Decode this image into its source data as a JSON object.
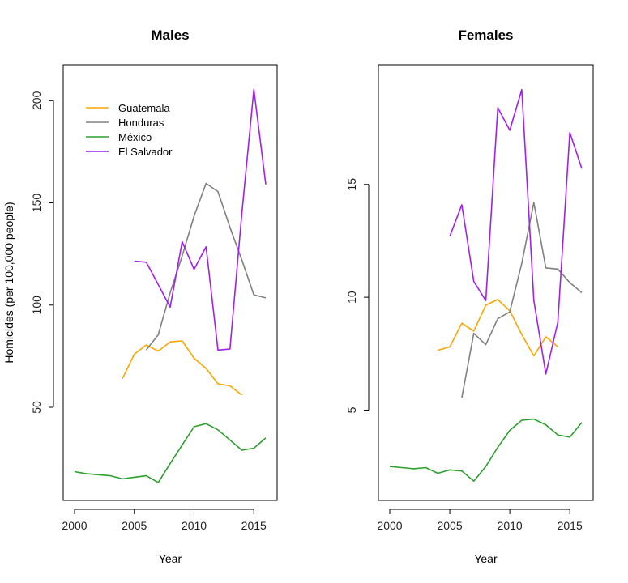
{
  "chart_data": [
    {
      "type": "line",
      "title": "Males",
      "xlabel": "Year",
      "ylabel": "Homicides (per 100,000 people)",
      "xlim": [
        2000,
        2016
      ],
      "ylim": [
        10,
        212
      ],
      "xticks": [
        2000,
        2005,
        2010,
        2015
      ],
      "yticks": [
        50,
        100,
        150,
        200
      ],
      "grid": false,
      "legend_position": "top-left",
      "series": [
        {
          "name": "Guatemala",
          "color": "#FFA500",
          "x": [
            2004,
            2005,
            2006,
            2007,
            2008,
            2009,
            2010,
            2011,
            2012,
            2013,
            2014
          ],
          "y": [
            64,
            76,
            80.5,
            77.5,
            82,
            82.5,
            74,
            69,
            61.5,
            60.5,
            56
          ]
        },
        {
          "name": "Honduras",
          "color": "#808080",
          "x": [
            2006,
            2007,
            2008,
            2009,
            2010,
            2011,
            2012,
            2013,
            2014,
            2015,
            2016
          ],
          "y": [
            78,
            85.5,
            106,
            124,
            143.5,
            159.5,
            155.5,
            138,
            122,
            105,
            103.5
          ]
        },
        {
          "name": "México",
          "color": "#2CA02C",
          "x": [
            2000,
            2001,
            2002,
            2003,
            2004,
            2005,
            2006,
            2007,
            2008,
            2009,
            2010,
            2011,
            2012,
            2013,
            2014,
            2015,
            2016
          ],
          "y": [
            18.5,
            17.5,
            17,
            16.5,
            15,
            15.8,
            16.5,
            13.2,
            22.5,
            31.5,
            40.5,
            42,
            39,
            34,
            29,
            30,
            35
          ]
        },
        {
          "name": "El Salvador",
          "color": "#A020F0",
          "x": [
            2005,
            2006,
            2007,
            2008,
            2009,
            2010,
            2011,
            2012,
            2013,
            2014,
            2015,
            2016
          ],
          "y": [
            121.5,
            121,
            110,
            99,
            131,
            117.5,
            128.5,
            78,
            78.5,
            145,
            205.5,
            159
          ]
        }
      ]
    },
    {
      "type": "line",
      "title": "Females",
      "xlabel": "Year",
      "ylabel": "",
      "xlim": [
        2000,
        2016
      ],
      "ylim": [
        1.5,
        19.8
      ],
      "xticks": [
        2000,
        2005,
        2010,
        2015
      ],
      "yticks": [
        5,
        10,
        15
      ],
      "grid": false,
      "legend_position": "none",
      "series": [
        {
          "name": "Guatemala",
          "color": "#FFA500",
          "x": [
            2004,
            2005,
            2006,
            2007,
            2008,
            2009,
            2010,
            2011,
            2012,
            2013,
            2014
          ],
          "y": [
            7.65,
            7.8,
            8.85,
            8.5,
            9.65,
            9.9,
            9.4,
            8.35,
            7.4,
            8.25,
            7.8
          ]
        },
        {
          "name": "Honduras",
          "color": "#808080",
          "x": [
            2006,
            2007,
            2008,
            2009,
            2010,
            2011,
            2012,
            2013,
            2014,
            2015,
            2016
          ],
          "y": [
            5.55,
            8.4,
            7.9,
            9.05,
            9.35,
            11.5,
            14.2,
            11.3,
            11.25,
            10.65,
            10.2
          ]
        },
        {
          "name": "México",
          "color": "#2CA02C",
          "x": [
            2000,
            2001,
            2002,
            2003,
            2004,
            2005,
            2006,
            2007,
            2008,
            2009,
            2010,
            2011,
            2012,
            2013,
            2014,
            2015,
            2016
          ],
          "y": [
            2.5,
            2.45,
            2.4,
            2.45,
            2.2,
            2.35,
            2.3,
            1.85,
            2.5,
            3.35,
            4.1,
            4.55,
            4.6,
            4.35,
            3.9,
            3.8,
            4.45
          ]
        },
        {
          "name": "El Salvador",
          "color": "#A020F0",
          "x": [
            2005,
            2006,
            2007,
            2008,
            2009,
            2010,
            2011,
            2012,
            2013,
            2014,
            2015,
            2016
          ],
          "y": [
            12.7,
            14.1,
            10.7,
            9.85,
            18.4,
            17.4,
            19.2,
            9.85,
            6.6,
            8.9,
            17.3,
            15.7
          ]
        }
      ]
    }
  ]
}
